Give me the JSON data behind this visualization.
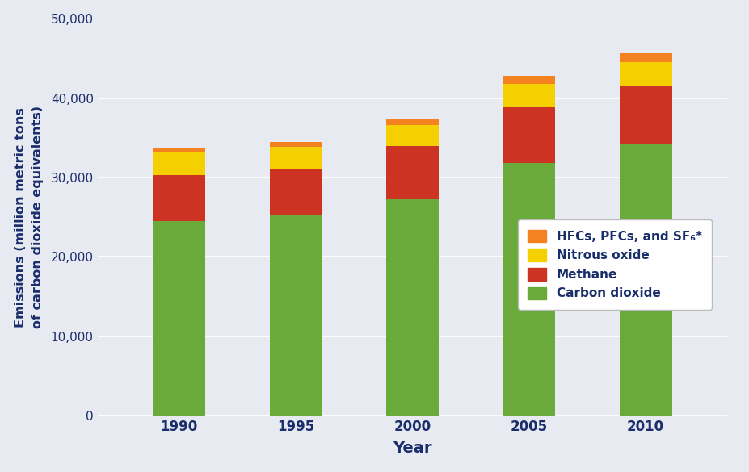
{
  "years": [
    "1990",
    "1995",
    "2000",
    "2005",
    "2010"
  ],
  "co2": [
    24500,
    25300,
    27200,
    31800,
    34300
  ],
  "methane": [
    5800,
    5800,
    6800,
    7000,
    7200
  ],
  "nitrous_oxide": [
    3000,
    2800,
    2600,
    3000,
    3000
  ],
  "hfcs": [
    400,
    600,
    700,
    1000,
    1200
  ],
  "color_co2": "#6aaa3a",
  "color_methane": "#cc3322",
  "color_nitrous_oxide": "#f5d000",
  "color_hfcs": "#f58220",
  "background_color": "#e8eaf2",
  "ylabel": "Emissions (million metric tons\nof carbon dioxide equivalents)",
  "xlabel": "Year",
  "ylim": [
    0,
    50000
  ],
  "yticks": [
    0,
    10000,
    20000,
    30000,
    40000,
    50000
  ],
  "legend_labels": [
    "HFCs, PFCs, and SF₆*",
    "Nitrous oxide",
    "Methane",
    "Carbon dioxide"
  ],
  "title_color": "#1a2e6b",
  "axis_label_color": "#1a2e6b",
  "tick_label_color": "#1a2e6b",
  "bar_width": 0.45,
  "figsize": [
    9.28,
    5.85
  ],
  "dpi": 100
}
